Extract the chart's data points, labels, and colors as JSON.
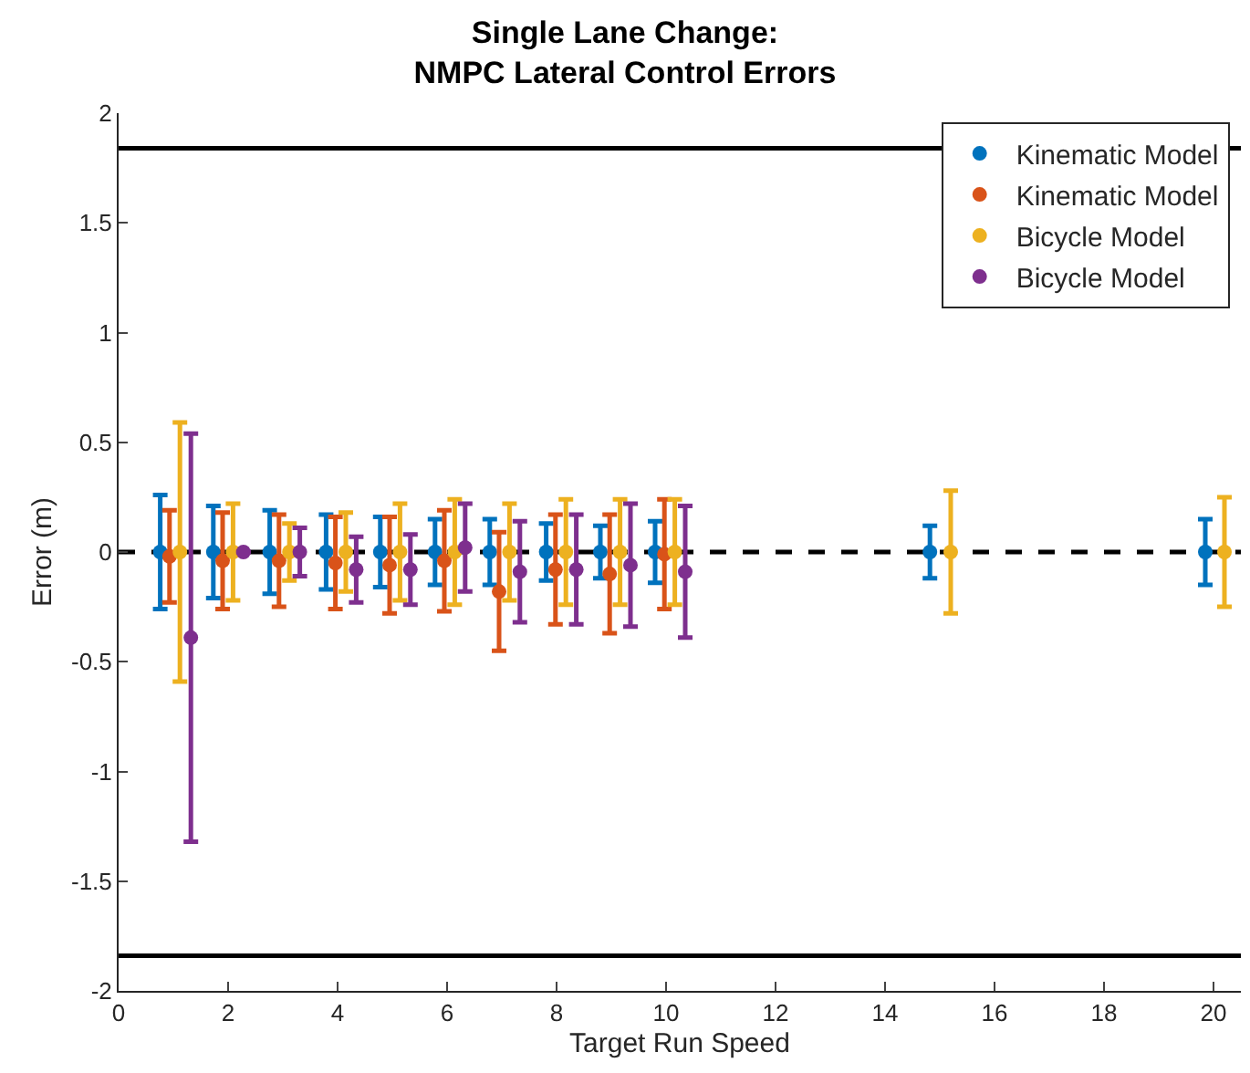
{
  "chart_data": {
    "type": "scatter",
    "title": "Single Lane Change:\nNMPC Lateral Control Errors",
    "xlabel": "Target Run Speed",
    "ylabel": "Error (m)",
    "xlim": [
      0,
      20.5
    ],
    "xticks": [
      0,
      2,
      4,
      6,
      8,
      10,
      12,
      14,
      16,
      18,
      20
    ],
    "ylim": [
      -2,
      2
    ],
    "yticks": [
      -2,
      -1.5,
      -1,
      -0.5,
      0,
      0.5,
      1,
      1.5,
      2
    ],
    "legend": "top right",
    "marker": "circle",
    "series": [
      {
        "name": "Kinematic Model",
        "color": "#0072bd",
        "x": [
          0.76,
          1.73,
          2.76,
          3.79,
          4.78,
          5.78,
          6.78,
          7.81,
          8.8,
          9.8,
          14.82,
          19.85
        ],
        "values": [
          0,
          0,
          0,
          0,
          0,
          0,
          0,
          0,
          0,
          0,
          0,
          0
        ],
        "errors": [
          0.26,
          0.21,
          0.19,
          0.17,
          0.16,
          0.15,
          0.15,
          0.13,
          0.12,
          0.14,
          0.12,
          0.15
        ]
      },
      {
        "name": "Kinematic Model",
        "color": "#d95319",
        "x": [
          0.93,
          1.9,
          2.93,
          3.96,
          4.95,
          5.95,
          6.95,
          7.98,
          8.97,
          9.97
        ],
        "values": [
          -0.02,
          -0.04,
          -0.04,
          -0.05,
          -0.06,
          -0.04,
          -0.18,
          -0.08,
          -0.1,
          -0.01
        ],
        "errors": [
          0.21,
          0.22,
          0.21,
          0.21,
          0.22,
          0.23,
          0.27,
          0.25,
          0.27,
          0.25
        ]
      },
      {
        "name": "Bicycle Model",
        "color": "#edb120",
        "x": [
          1.12,
          2.09,
          3.12,
          4.15,
          5.14,
          6.14,
          7.14,
          8.17,
          9.16,
          10.16,
          15.2,
          20.2
        ],
        "values": [
          0,
          0,
          0,
          0,
          0,
          0,
          0,
          0,
          0,
          0,
          0,
          0
        ],
        "errors": [
          0.59,
          0.22,
          0.13,
          0.18,
          0.22,
          0.24,
          0.22,
          0.24,
          0.24,
          0.24,
          0.28,
          0.25
        ]
      },
      {
        "name": "Bicycle Model",
        "color": "#7e2f8e",
        "x": [
          1.32,
          2.28,
          3.31,
          4.34,
          5.33,
          6.33,
          7.33,
          8.36,
          9.35,
          10.35
        ],
        "values": [
          -0.39,
          0,
          0,
          -0.08,
          -0.08,
          0.02,
          -0.09,
          -0.08,
          -0.06,
          -0.09
        ],
        "errors": [
          0.93,
          0,
          0.11,
          0.15,
          0.16,
          0.2,
          0.23,
          0.25,
          0.28,
          0.3
        ]
      }
    ],
    "ref_lines": [
      {
        "axis": "y",
        "value": 1.84,
        "color": "#000000",
        "line_style": "solid"
      },
      {
        "axis": "y",
        "value": -1.84,
        "color": "#000000",
        "line_style": "solid"
      },
      {
        "axis": "y",
        "value": 0,
        "color": "#000000",
        "line_style": "dashed"
      }
    ]
  }
}
